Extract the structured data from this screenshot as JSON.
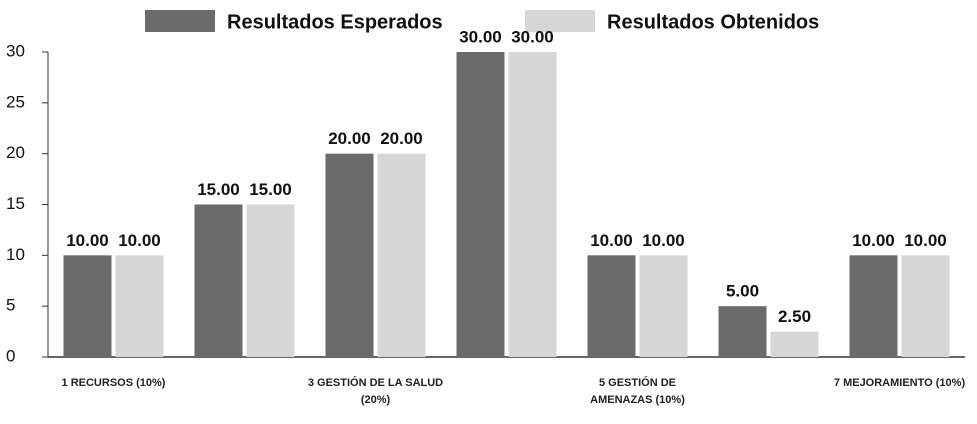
{
  "chart_data": {
    "type": "bar",
    "categories": [
      "1 RECURSOS (10%)",
      null,
      "3 GESTIÓN DE LA SALUD (20%)",
      null,
      "5 GESTIÓN DE AMENAZAS (10%)",
      null,
      "7 MEJORAMIENTO (10%)"
    ],
    "series": [
      {
        "name": "Resultados Esperados",
        "color": "#6b6b6b",
        "values": [
          10,
          15,
          20,
          30,
          10,
          5,
          10
        ],
        "value_labels": [
          "10.00",
          "15.00",
          "20.00",
          "30.00",
          "10.00",
          "5.00",
          "10.00"
        ]
      },
      {
        "name": "Resultados Obtenidos",
        "color": "#d6d6d6",
        "values": [
          10,
          15,
          20,
          30,
          10,
          2.5,
          10
        ],
        "value_labels": [
          "10.00",
          "15.00",
          "20.00",
          "30.00",
          "10.00",
          "2.50",
          "10.00"
        ]
      }
    ],
    "ylim": [
      0,
      30
    ],
    "yticks": [
      0,
      5,
      10,
      15,
      20,
      25,
      30
    ],
    "grid": false,
    "legend": "top"
  }
}
